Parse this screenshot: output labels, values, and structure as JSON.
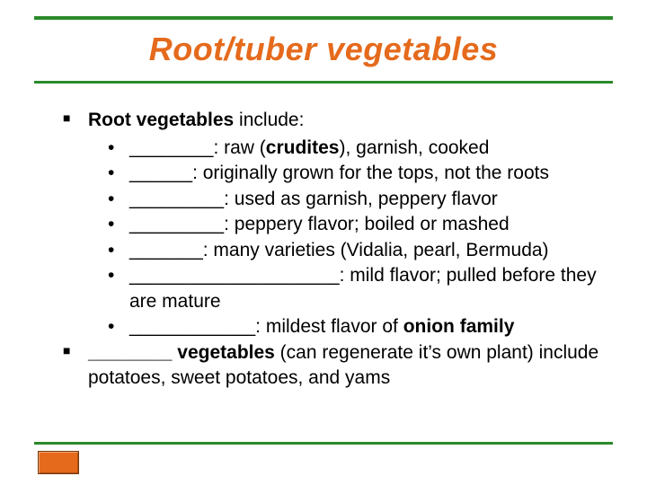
{
  "colors": {
    "rule_green": "#2a8a2a",
    "title_orange": "#e56a1c",
    "text": "#000000",
    "background": "#ffffff",
    "box_border": "#7a3a0a"
  },
  "title": {
    "text": "Root/tuber vegetables",
    "fontsize": 36,
    "italic": true,
    "bold": true
  },
  "body_fontsize": 21,
  "sections": {
    "s1": {
      "lead_bold": "Root vegetables",
      "lead_rest": " include:",
      "items": [
        {
          "blank": " ________",
          "rest_a": ": raw (",
          "bold": "crudites",
          "rest_b": "), garnish, cooked"
        },
        {
          "blank": "______",
          "rest_a": ": originally grown for the tops, not the roots",
          "bold": "",
          "rest_b": ""
        },
        {
          "blank": " _________",
          "rest_a": ": used as garnish, peppery flavor",
          "bold": "",
          "rest_b": ""
        },
        {
          "blank": "_________",
          "rest_a": ": peppery flavor; boiled or mashed",
          "bold": "",
          "rest_b": ""
        },
        {
          "blank": "_______",
          "rest_a": ": many varieties (Vidalia, pearl, Bermuda)",
          "bold": "",
          "rest_b": ""
        },
        {
          "blank": "____________________",
          "rest_a": ": mild flavor; pulled before they are mature",
          "bold": "",
          "rest_b": ""
        },
        {
          "blank": "____________",
          "rest_a": ": mildest flavor of ",
          "bold": "onion family",
          "rest_b": ""
        }
      ]
    },
    "s2": {
      "blank": "________ ",
      "bold": "vegetables",
      "rest": " (can regenerate it’s own plant) include potatoes, sweet potatoes, and yams"
    }
  }
}
